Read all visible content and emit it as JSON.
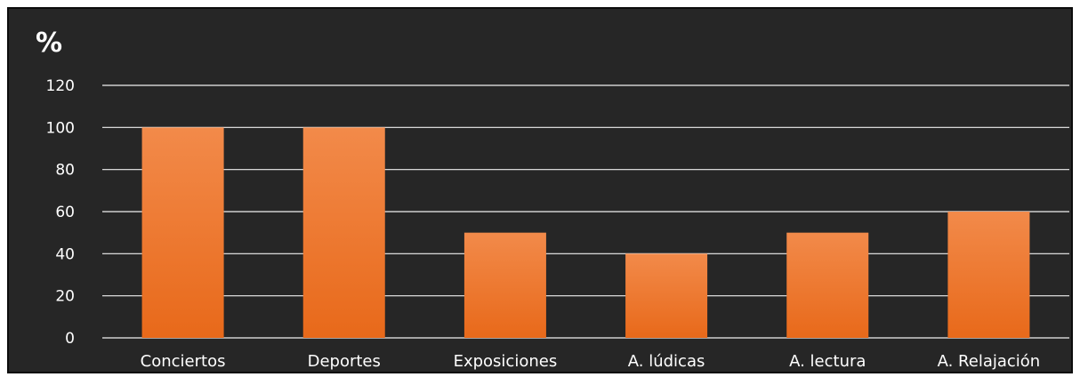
{
  "chart_data": {
    "type": "bar",
    "title": "",
    "xlabel": "",
    "ylabel": "%",
    "categories": [
      "Conciertos",
      "Deportes",
      "Exposiciones",
      "A. lúdicas",
      "A. lectura",
      "A. Relajación"
    ],
    "values": [
      100,
      100,
      50,
      40,
      50,
      60
    ],
    "ylim": [
      0,
      120
    ],
    "yticks": [
      "0",
      "20",
      "40",
      "60",
      "80",
      "100",
      "120"
    ],
    "grid": true,
    "legend": "none",
    "colors": {
      "background": "#262626",
      "bar_top": "#f28a4a",
      "bar_bottom": "#e8691a",
      "grid": "#f0f0f0",
      "text": "#ffffff"
    }
  }
}
